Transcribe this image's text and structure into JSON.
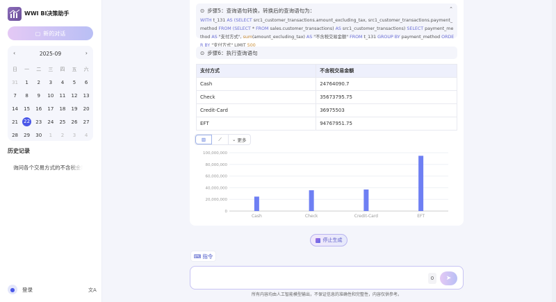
{
  "app": {
    "title": "WWI BI决策助手",
    "new_chat": "新的对话"
  },
  "calendar": {
    "month": "2025-09",
    "prev": "‹",
    "next": "›",
    "weekdays": [
      "日",
      "一",
      "二",
      "三",
      "四",
      "五",
      "六"
    ],
    "days": [
      [
        "31",
        "muted"
      ],
      [
        "1",
        ""
      ],
      [
        "2",
        ""
      ],
      [
        "3",
        ""
      ],
      [
        "4",
        ""
      ],
      [
        "5",
        ""
      ],
      [
        "6",
        ""
      ],
      [
        "7",
        ""
      ],
      [
        "8",
        ""
      ],
      [
        "9",
        ""
      ],
      [
        "10",
        ""
      ],
      [
        "11",
        ""
      ],
      [
        "12",
        ""
      ],
      [
        "13",
        ""
      ],
      [
        "14",
        ""
      ],
      [
        "15",
        ""
      ],
      [
        "16",
        ""
      ],
      [
        "17",
        ""
      ],
      [
        "18",
        ""
      ],
      [
        "19",
        ""
      ],
      [
        "20",
        ""
      ],
      [
        "21",
        ""
      ],
      [
        "22",
        "sel"
      ],
      [
        "23",
        ""
      ],
      [
        "24",
        ""
      ],
      [
        "25",
        ""
      ],
      [
        "26",
        ""
      ],
      [
        "27",
        ""
      ],
      [
        "28",
        ""
      ],
      [
        "29",
        ""
      ],
      [
        "30",
        ""
      ],
      [
        "1",
        "muted"
      ],
      [
        "2",
        "muted"
      ],
      [
        "3",
        "muted"
      ],
      [
        "4",
        "muted"
      ]
    ]
  },
  "history": {
    "title": "历史记录",
    "items": [
      "询问各个交易方式的不含税金额"
    ]
  },
  "user": {
    "login": "登录"
  },
  "steps": {
    "step5": {
      "title": "步骤5：查询语句转换，转换后的查询语句为：",
      "sql": [
        [
          "kw",
          "WITH "
        ],
        [
          "",
          "t_131 "
        ],
        [
          "kw",
          "AS ("
        ],
        [
          "kw",
          "SELECT "
        ],
        [
          "",
          "src1_customer_transactions.amount_excluding_tax, src1_customer_transactions.payment_method "
        ],
        [
          "kw",
          "FROM ("
        ],
        [
          "kw",
          "SELECT "
        ],
        [
          "",
          "* "
        ],
        [
          "kw",
          "FROM "
        ],
        [
          "",
          "sales.customer_transactions) "
        ],
        [
          "kw",
          "AS "
        ],
        [
          "",
          "src1_customer_transactions) "
        ],
        [
          "kw",
          "SELECT "
        ],
        [
          "",
          "payment_method "
        ],
        [
          "kw",
          "AS "
        ],
        [
          "",
          "\"支付方式\", "
        ],
        [
          "num",
          "sum"
        ],
        [
          "",
          "(amount_excluding_tax) "
        ],
        [
          "kw",
          "AS "
        ],
        [
          "",
          "\"不含税交易金额\" "
        ],
        [
          "kw",
          "FROM "
        ],
        [
          "",
          "t_131 "
        ],
        [
          "kw",
          "GROUP BY "
        ],
        [
          "",
          "payment_method "
        ],
        [
          "kw",
          "ORDER BY "
        ],
        [
          "",
          "\"支付方式\" LIMIT "
        ],
        [
          "num",
          "500"
        ]
      ]
    },
    "step6": {
      "title": "步骤6：执行查询语句"
    }
  },
  "table": {
    "headers": [
      "支付方式",
      "不含税交易金额"
    ],
    "rows": [
      [
        "Cash",
        "24764090.7"
      ],
      [
        "Check",
        "35673795.75"
      ],
      [
        "Credit-Card",
        "36975503"
      ],
      [
        "EFT",
        "94767951.75"
      ]
    ]
  },
  "chart_toolbar": {
    "more": "更多"
  },
  "chart_data": {
    "type": "bar",
    "categories": [
      "Cash",
      "Check",
      "Credit-Card",
      "EFT"
    ],
    "values": [
      24764090.7,
      35673795.75,
      36975503,
      94767951.75
    ],
    "ylim": [
      0,
      100000000
    ],
    "yticks": [
      "0",
      "20,000,000",
      "40,000,000",
      "60,000,000",
      "80,000,000",
      "100,000,000"
    ],
    "grid": true,
    "color": "#6e7ff3"
  },
  "actions": {
    "stop": "停止生成",
    "command": "指令",
    "char_count": "0"
  },
  "footer": "所有内容均由人工智能模型输出，不保证信息的准确性和完整性，内容仅供参考。"
}
